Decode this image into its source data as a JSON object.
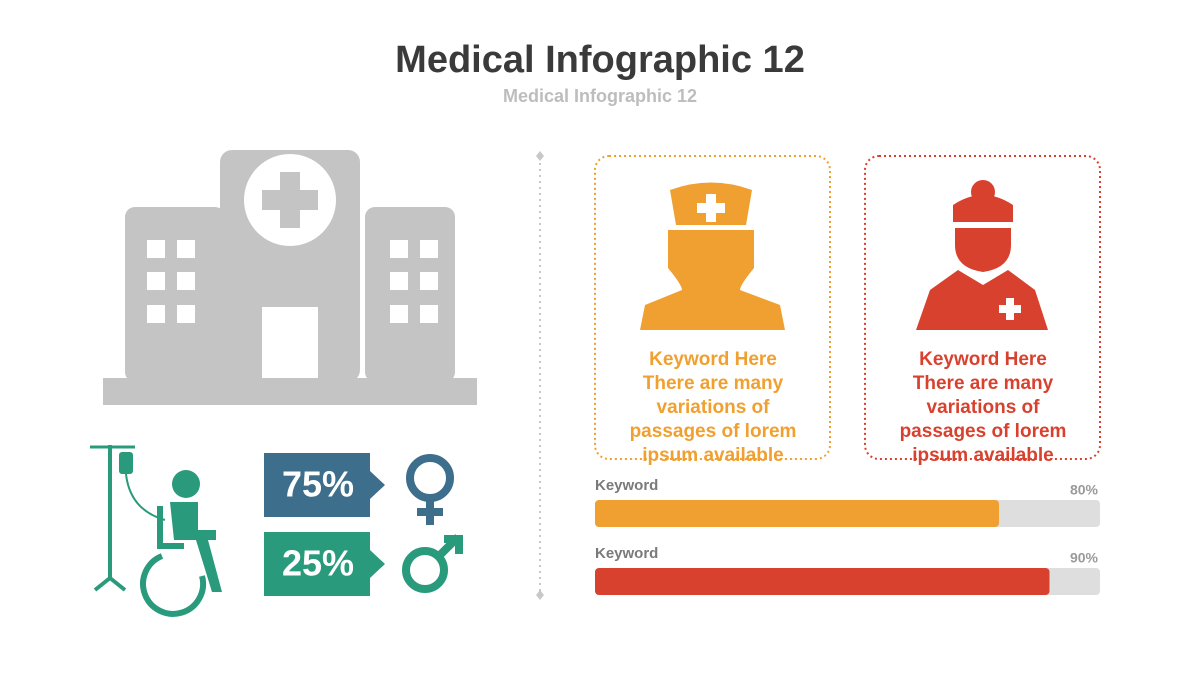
{
  "header": {
    "title": "Medical Infographic 12",
    "subtitle": "Medical Infographic 12"
  },
  "stats": [
    {
      "label": "75%",
      "color": "#3d6e8c"
    },
    {
      "label": "25%",
      "color": "#2a9a7c"
    }
  ],
  "cards": [
    {
      "heading": "Keyword Here",
      "body": [
        "There are many",
        "variations of",
        "passages of lorem",
        "ipsum available"
      ],
      "color": "#f0a030"
    },
    {
      "heading": "Keyword Here",
      "body": [
        "There are many",
        "variations of",
        "passages of lorem",
        "ipsum available"
      ],
      "color": "#d9412f"
    }
  ],
  "progress": {
    "xlim": [
      0,
      100
    ],
    "bars": [
      {
        "label": "Keyword",
        "value": 80,
        "value_label": "80%",
        "color": "#f0a030"
      },
      {
        "label": "Keyword",
        "value": 90,
        "value_label": "90%",
        "color": "#d9412f"
      }
    ]
  }
}
